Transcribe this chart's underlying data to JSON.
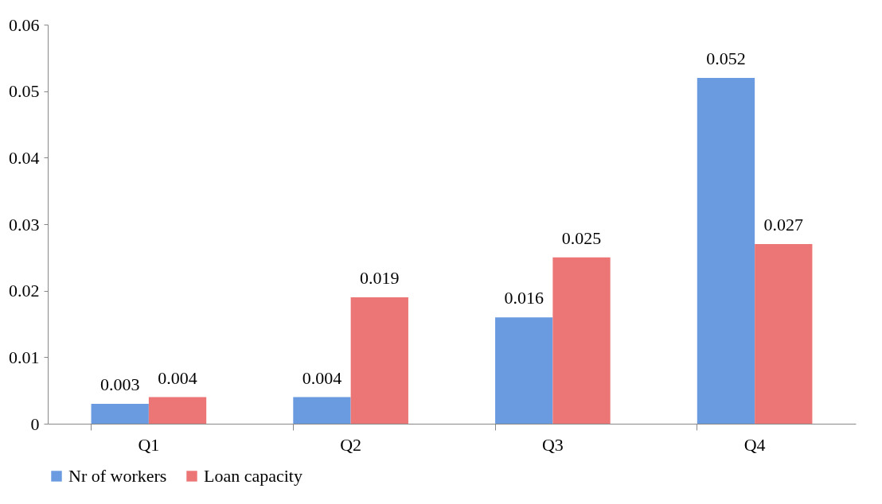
{
  "chart_data": {
    "type": "bar",
    "categories": [
      "Q1",
      "Q2",
      "Q3",
      "Q4"
    ],
    "series": [
      {
        "name": "Nr of workers",
        "color": "#6a9be0",
        "values": [
          0.003,
          0.004,
          0.016,
          0.052
        ]
      },
      {
        "name": "Loan capacity",
        "color": "#ec7676",
        "values": [
          0.004,
          0.019,
          0.025,
          0.027
        ]
      }
    ],
    "ylim": [
      0,
      0.06
    ],
    "yticks": [
      0,
      0.01,
      0.02,
      0.03,
      0.04,
      0.05,
      0.06
    ],
    "data_labels": true,
    "grid": false,
    "legend": "bottom"
  }
}
